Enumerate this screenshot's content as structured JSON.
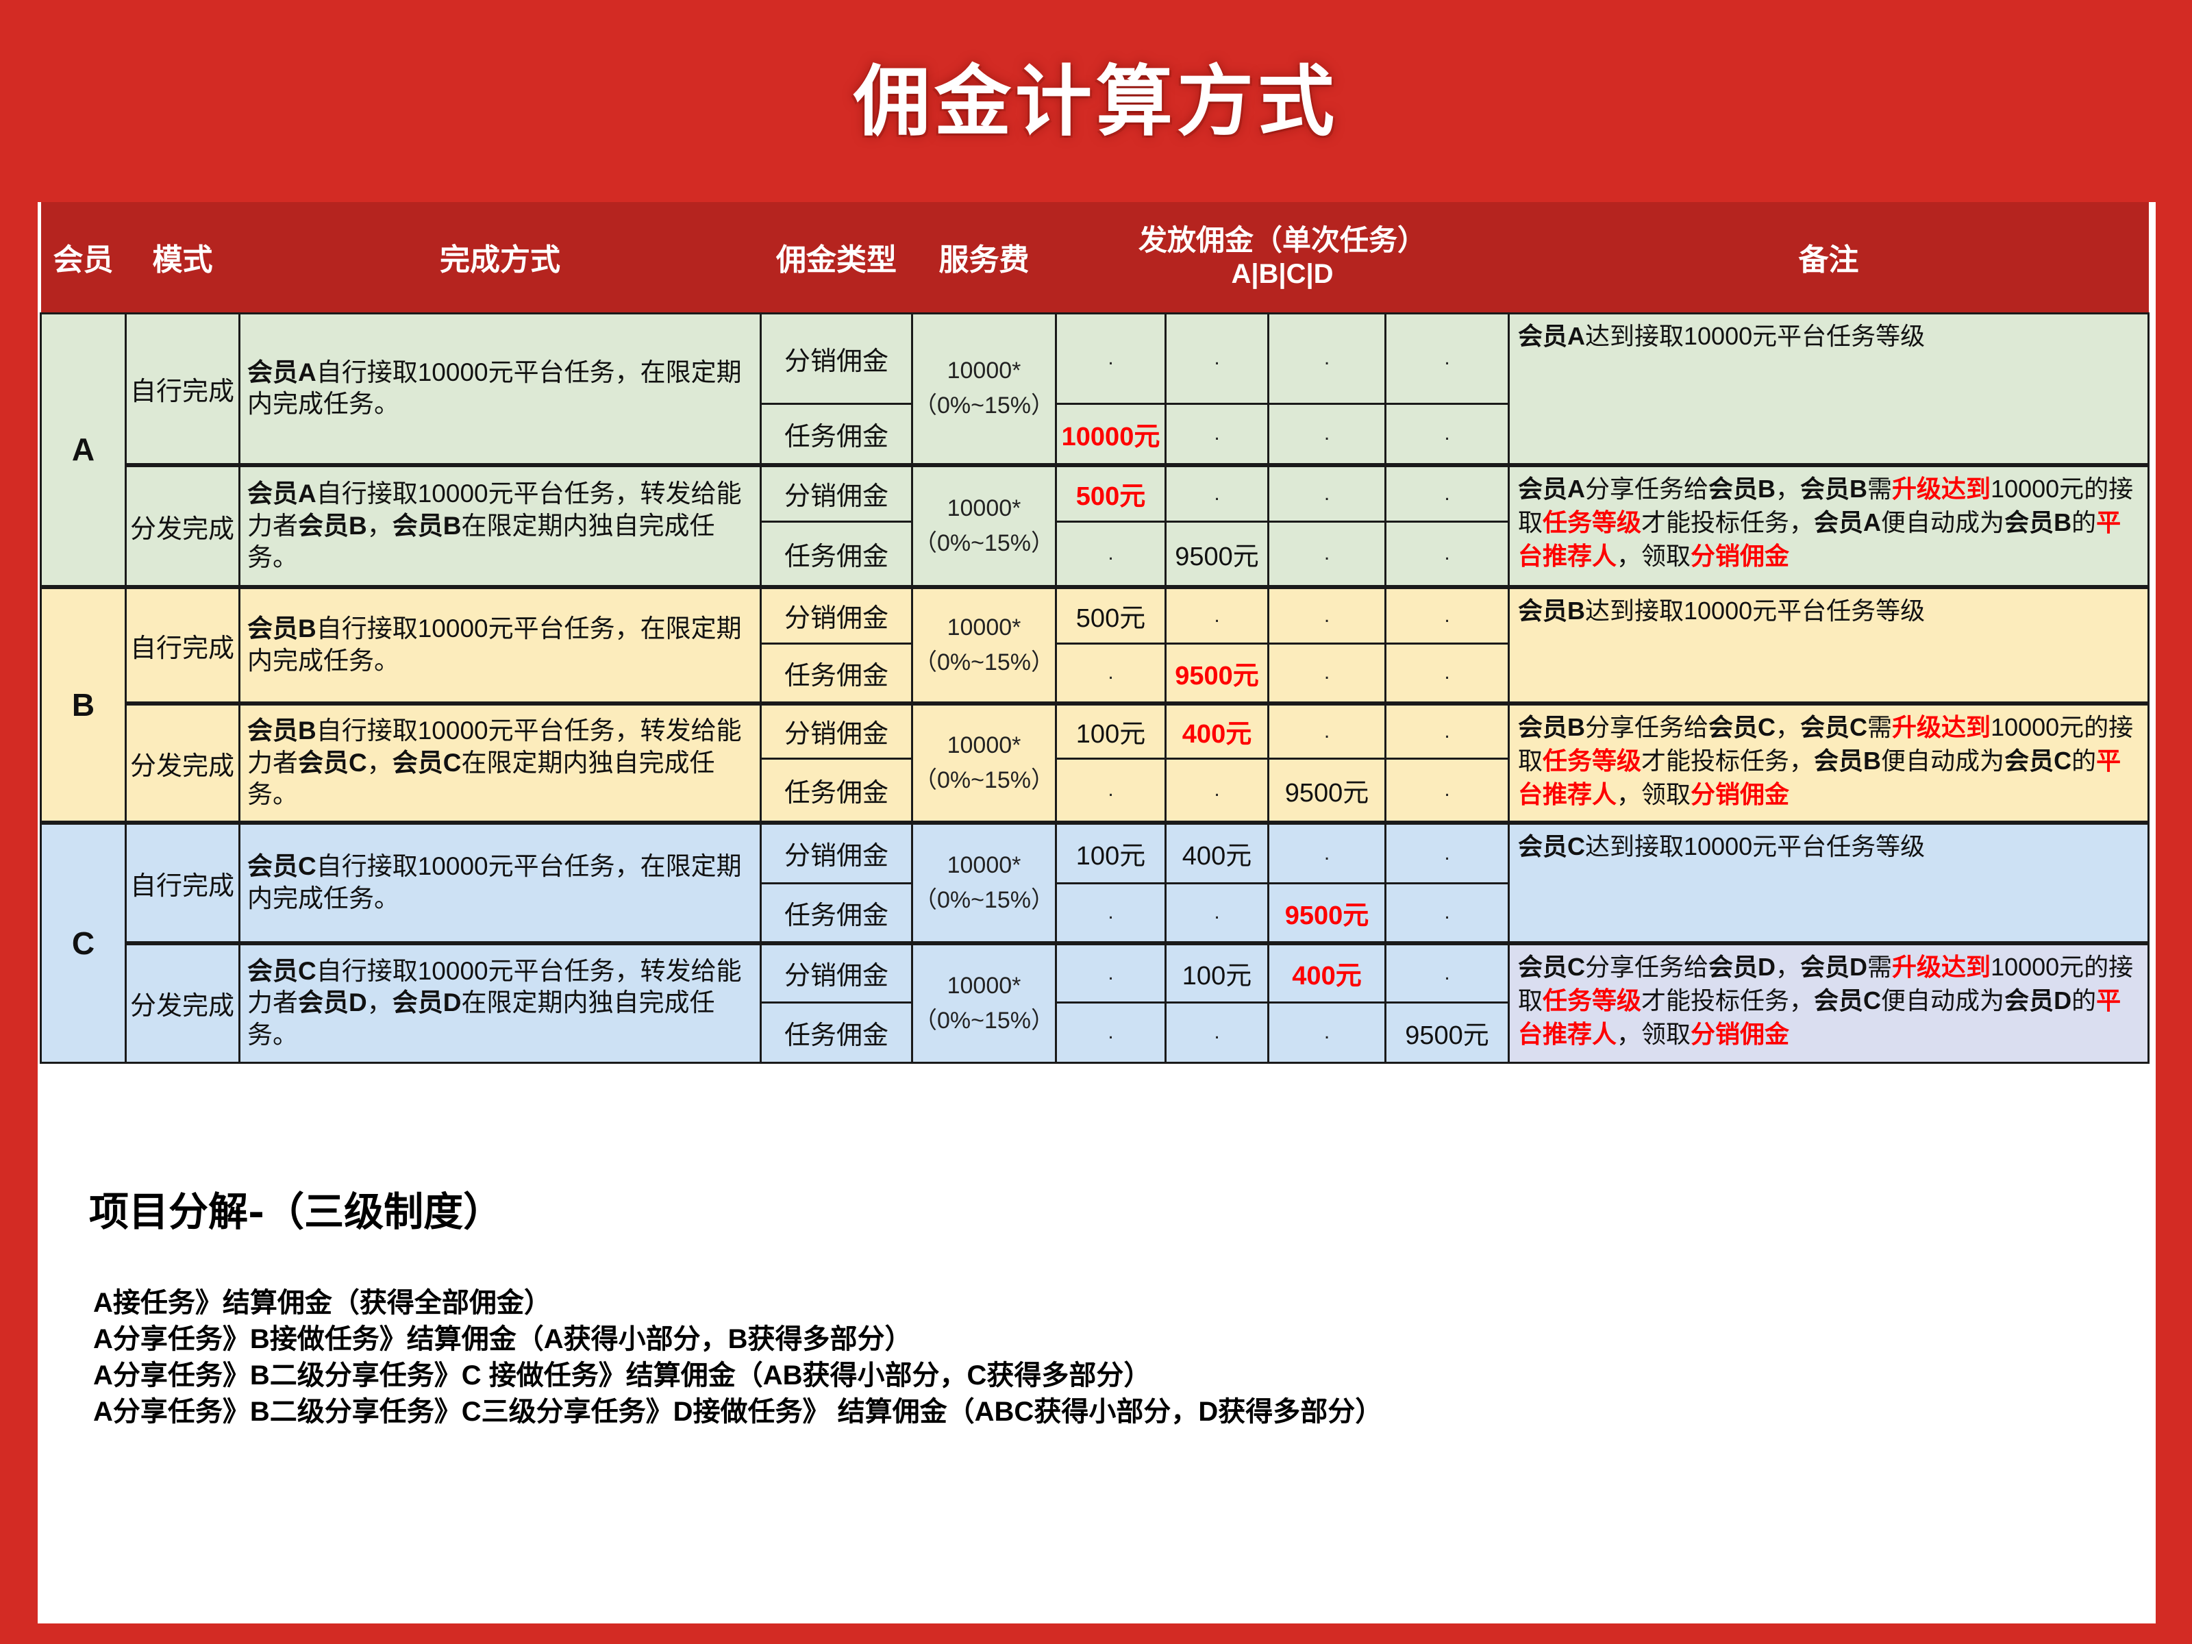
{
  "title": "佣金计算方式",
  "colors": {
    "background_red": "#d32b24",
    "header_band_red": "#b5241f",
    "group_a_green": "#dde9d5",
    "group_b_yellow": "#fcecbc",
    "group_c_blue": "#cde1f4",
    "group_c_dispatch_remark_lavender": "#dadef0",
    "highlight_red": "#fe0000",
    "border_black": "#1a1a1a",
    "sheet_white": "#ffffff"
  },
  "table": {
    "header": {
      "member": "会员",
      "mode": "模式",
      "method": "完成方式",
      "commission_type": "佣金类型",
      "service_fee": "服务费",
      "payout_line1": "发放佣金（单次任务）",
      "payout_line2": "A|B|C|D",
      "remark": "备注"
    },
    "groups": [
      {
        "member": "A",
        "sections": [
          {
            "mode": "自行完成",
            "desc": [
              {
                "t": "会员A",
                "b": true
              },
              {
                "t": "自行接取10000元平台任务，在限定期内完成任务。"
              }
            ],
            "fee": [
              "10000*",
              "（0%~15%）"
            ],
            "rows": [
              {
                "type": "分销佣金",
                "values": [
                  {
                    "t": "."
                  },
                  {
                    "t": "."
                  },
                  {
                    "t": "."
                  },
                  {
                    "t": "."
                  }
                ]
              },
              {
                "type": "任务佣金",
                "values": [
                  {
                    "t": "10000元",
                    "red": true
                  },
                  {
                    "t": "."
                  },
                  {
                    "t": "."
                  },
                  {
                    "t": "."
                  }
                ]
              }
            ],
            "remark": [
              {
                "t": "会员A",
                "b": true
              },
              {
                "t": "达到接取10000元平台任务等级"
              }
            ]
          },
          {
            "mode": "分发完成",
            "desc": [
              {
                "t": "会员A",
                "b": true
              },
              {
                "t": "自行接取10000元平台任务，转发给能力者"
              },
              {
                "t": "会员B",
                "b": true
              },
              {
                "t": "，"
              },
              {
                "t": "会员B",
                "b": true
              },
              {
                "t": "在限定期内独自完成任务。"
              }
            ],
            "fee": [
              "10000*",
              "（0%~15%）"
            ],
            "rows": [
              {
                "type": "分销佣金",
                "values": [
                  {
                    "t": "500元",
                    "red": true
                  },
                  {
                    "t": "."
                  },
                  {
                    "t": "."
                  },
                  {
                    "t": "."
                  }
                ]
              },
              {
                "type": "任务佣金",
                "values": [
                  {
                    "t": "."
                  },
                  {
                    "t": "9500元"
                  },
                  {
                    "t": "."
                  },
                  {
                    "t": "."
                  }
                ]
              }
            ],
            "remark": [
              {
                "t": "会员A",
                "b": true
              },
              {
                "t": "分享任务给"
              },
              {
                "t": "会员B",
                "b": true
              },
              {
                "t": "，"
              },
              {
                "t": "会员B",
                "b": true
              },
              {
                "t": "需"
              },
              {
                "t": "升级达到",
                "b": true,
                "r": true
              },
              {
                "t": "10000元的接取"
              },
              {
                "t": "任务等级",
                "b": true,
                "r": true
              },
              {
                "t": "才能投标任务，"
              },
              {
                "t": "会员A",
                "b": true
              },
              {
                "t": "便自动成为"
              },
              {
                "t": "会员B",
                "b": true
              },
              {
                "t": "的"
              },
              {
                "t": "平台推荐人",
                "b": true,
                "r": true
              },
              {
                "t": "，领取"
              },
              {
                "t": "分销佣金",
                "b": true,
                "r": true
              }
            ]
          }
        ]
      },
      {
        "member": "B",
        "sections": [
          {
            "mode": "自行完成",
            "desc": [
              {
                "t": "会员B",
                "b": true
              },
              {
                "t": "自行接取10000元平台任务，在限定期内完成任务。"
              }
            ],
            "fee": [
              "10000*",
              "（0%~15%）"
            ],
            "rows": [
              {
                "type": "分销佣金",
                "values": [
                  {
                    "t": "500元"
                  },
                  {
                    "t": "."
                  },
                  {
                    "t": "."
                  },
                  {
                    "t": "."
                  }
                ]
              },
              {
                "type": "任务佣金",
                "values": [
                  {
                    "t": "."
                  },
                  {
                    "t": "9500元",
                    "red": true
                  },
                  {
                    "t": "."
                  },
                  {
                    "t": "."
                  }
                ]
              }
            ],
            "remark": [
              {
                "t": "会员B",
                "b": true
              },
              {
                "t": "达到接取10000元平台任务等级"
              }
            ]
          },
          {
            "mode": "分发完成",
            "desc": [
              {
                "t": "会员B",
                "b": true
              },
              {
                "t": "自行接取10000元平台任务，转发给能力者"
              },
              {
                "t": "会员C",
                "b": true
              },
              {
                "t": "，"
              },
              {
                "t": "会员C",
                "b": true
              },
              {
                "t": "在限定期内独自完成任务。"
              }
            ],
            "fee": [
              "10000*",
              "（0%~15%）"
            ],
            "rows": [
              {
                "type": "分销佣金",
                "values": [
                  {
                    "t": "100元"
                  },
                  {
                    "t": "400元",
                    "red": true
                  },
                  {
                    "t": "."
                  },
                  {
                    "t": "."
                  }
                ]
              },
              {
                "type": "任务佣金",
                "values": [
                  {
                    "t": "."
                  },
                  {
                    "t": "."
                  },
                  {
                    "t": "9500元"
                  },
                  {
                    "t": "."
                  }
                ]
              }
            ],
            "remark": [
              {
                "t": "会员B",
                "b": true
              },
              {
                "t": "分享任务给"
              },
              {
                "t": "会员C",
                "b": true
              },
              {
                "t": "，"
              },
              {
                "t": "会员C",
                "b": true
              },
              {
                "t": "需"
              },
              {
                "t": "升级达到",
                "b": true,
                "r": true
              },
              {
                "t": "10000元的接取"
              },
              {
                "t": "任务等级",
                "b": true,
                "r": true
              },
              {
                "t": "才能投标任务，"
              },
              {
                "t": "会员B",
                "b": true
              },
              {
                "t": "便自动成为"
              },
              {
                "t": "会员C",
                "b": true
              },
              {
                "t": "的"
              },
              {
                "t": "平台推荐人",
                "b": true,
                "r": true
              },
              {
                "t": "，领取"
              },
              {
                "t": "分销佣金",
                "b": true,
                "r": true
              }
            ]
          }
        ]
      },
      {
        "member": "C",
        "sections": [
          {
            "mode": "自行完成",
            "desc": [
              {
                "t": "会员C",
                "b": true
              },
              {
                "t": "自行接取10000元平台任务，在限定期内完成任务。"
              }
            ],
            "fee": [
              "10000*",
              "（0%~15%）"
            ],
            "rows": [
              {
                "type": "分销佣金",
                "values": [
                  {
                    "t": "100元"
                  },
                  {
                    "t": "400元"
                  },
                  {
                    "t": "."
                  },
                  {
                    "t": "."
                  }
                ]
              },
              {
                "type": "任务佣金",
                "values": [
                  {
                    "t": "."
                  },
                  {
                    "t": "."
                  },
                  {
                    "t": "9500元",
                    "red": true
                  },
                  {
                    "t": "."
                  }
                ]
              }
            ],
            "remark": [
              {
                "t": "会员C",
                "b": true
              },
              {
                "t": "达到接取10000元平台任务等级"
              }
            ]
          },
          {
            "mode": "分发完成",
            "desc": [
              {
                "t": "会员C",
                "b": true
              },
              {
                "t": "自行接取10000元平台任务，转发给能力者"
              },
              {
                "t": "会员D",
                "b": true
              },
              {
                "t": "，"
              },
              {
                "t": "会员D",
                "b": true
              },
              {
                "t": "在限定期内独自完成任务。"
              }
            ],
            "fee": [
              "10000*",
              "（0%~15%）"
            ],
            "rows": [
              {
                "type": "分销佣金",
                "values": [
                  {
                    "t": "."
                  },
                  {
                    "t": "100元"
                  },
                  {
                    "t": "400元",
                    "red": true
                  },
                  {
                    "t": "."
                  }
                ]
              },
              {
                "type": "任务佣金",
                "values": [
                  {
                    "t": "."
                  },
                  {
                    "t": "."
                  },
                  {
                    "t": "."
                  },
                  {
                    "t": "9500元"
                  }
                ]
              }
            ],
            "remark": [
              {
                "t": "会员C",
                "b": true
              },
              {
                "t": "分享任务给"
              },
              {
                "t": "会员D",
                "b": true
              },
              {
                "t": "，"
              },
              {
                "t": "会员D",
                "b": true
              },
              {
                "t": "需"
              },
              {
                "t": "升级达到",
                "b": true,
                "r": true
              },
              {
                "t": "10000元的接取"
              },
              {
                "t": "任务等级",
                "b": true,
                "r": true
              },
              {
                "t": "才能投标任务，"
              },
              {
                "t": "会员C",
                "b": true
              },
              {
                "t": "便自动成为"
              },
              {
                "t": "会员D",
                "b": true
              },
              {
                "t": "的"
              },
              {
                "t": "平台推荐人",
                "b": true,
                "r": true
              },
              {
                "t": "，领取"
              },
              {
                "t": "分销佣金",
                "b": true,
                "r": true
              }
            ]
          }
        ]
      }
    ]
  },
  "footer": {
    "heading": "项目分解-（三级制度）",
    "lines": [
      "A接任务》结算佣金（获得全部佣金）",
      "A分享任务》B接做任务》结算佣金（A获得小部分，B获得多部分）",
      "A分享任务》B二级分享任务》C 接做任务》结算佣金（AB获得小部分，C获得多部分）",
      "A分享任务》B二级分享任务》C三级分享任务》D接做任务》 结算佣金（ABC获得小部分，D获得多部分）"
    ]
  }
}
